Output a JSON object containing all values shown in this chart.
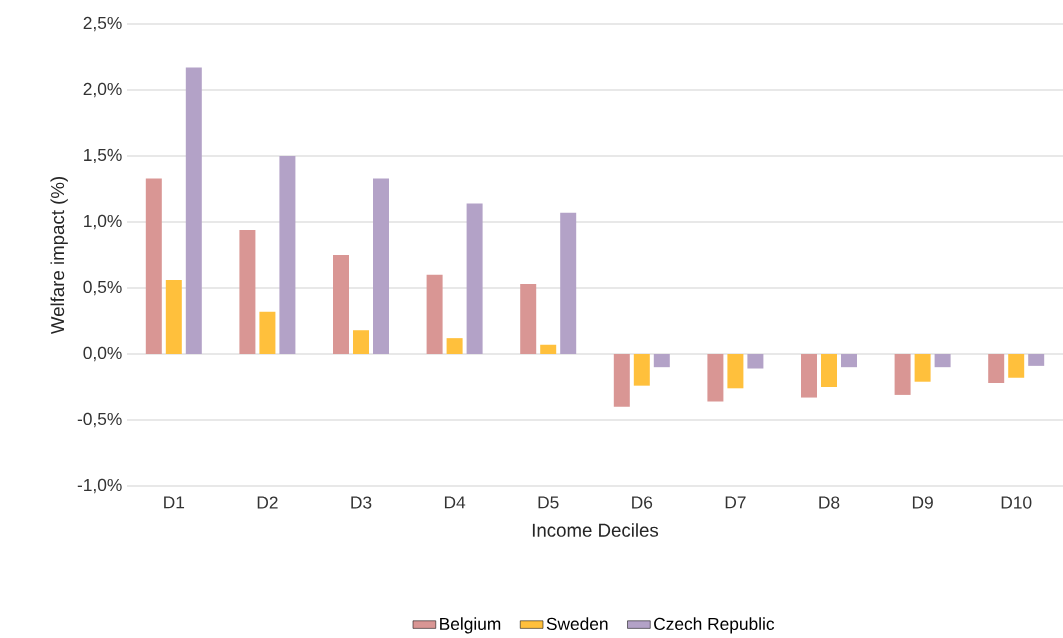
{
  "chart_data": {
    "type": "bar",
    "xlabel": "Income Deciles",
    "ylabel": "Welfare impact (%)",
    "categories": [
      "D1",
      "D2",
      "D3",
      "D4",
      "D5",
      "D6",
      "D7",
      "D8",
      "D9",
      "D10"
    ],
    "series": [
      {
        "name": "Belgium",
        "color": "#d99694",
        "values": [
          1.33,
          0.94,
          0.75,
          0.6,
          0.53,
          -0.4,
          -0.36,
          -0.33,
          -0.31,
          -0.22
        ]
      },
      {
        "name": "Sweden",
        "color": "#ffc03c",
        "values": [
          0.56,
          0.32,
          0.18,
          0.12,
          0.07,
          -0.24,
          -0.26,
          -0.25,
          -0.21,
          -0.18
        ]
      },
      {
        "name": "Czech Republic",
        "color": "#b3a2c7",
        "values": [
          2.17,
          1.5,
          1.33,
          1.14,
          1.07,
          -0.1,
          -0.11,
          -0.1,
          -0.1,
          -0.09
        ]
      }
    ],
    "ylim": [
      -1.0,
      2.5
    ],
    "yticks": [
      {
        "value": -1.0,
        "label": "-1,0%"
      },
      {
        "value": -0.5,
        "label": "-0,5%"
      },
      {
        "value": 0.0,
        "label": "0,0%"
      },
      {
        "value": 0.5,
        "label": "0,5%"
      },
      {
        "value": 1.0,
        "label": "1,0%"
      },
      {
        "value": 1.5,
        "label": "1,5%"
      },
      {
        "value": 2.0,
        "label": "2,0%"
      },
      {
        "value": 2.5,
        "label": "2,5%"
      }
    ],
    "grid": "y",
    "legend": "bottom"
  }
}
